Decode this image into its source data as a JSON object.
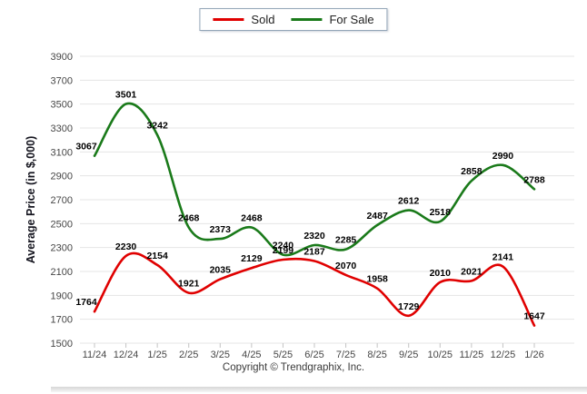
{
  "chart_data": {
    "type": "line",
    "categories": [
      "11/24",
      "12/24",
      "1/25",
      "2/25",
      "3/25",
      "4/25",
      "5/25",
      "6/25",
      "7/25",
      "8/25",
      "9/25",
      "10/25",
      "11/25",
      "12/25",
      "1/26"
    ],
    "series": [
      {
        "name": "Sold",
        "color": "#e00000",
        "values": [
          1764,
          2230,
          2154,
          1921,
          2035,
          2129,
          2199,
          2187,
          2070,
          1958,
          1729,
          2010,
          2021,
          2141,
          1647
        ]
      },
      {
        "name": "For Sale",
        "color": "#1a7a1a",
        "values": [
          3067,
          3501,
          3242,
          2468,
          2373,
          2468,
          2240,
          2320,
          2285,
          2487,
          2612,
          2518,
          2858,
          2990,
          2788
        ]
      }
    ],
    "title": "",
    "xlabel": "",
    "ylabel": "Average Price (in $,000)",
    "ylim": [
      1500,
      3900
    ],
    "ytick_step": 200,
    "grid": true,
    "legend_position": "top-center",
    "data_labels": true,
    "colors": {
      "gridline": "#e5e5e5",
      "tick_label": "#474747",
      "data_label": "#000000",
      "axis_title": "#15151f",
      "x_tick_mark": "#c4c4c4"
    }
  },
  "footer": {
    "copyright": "Copyright © Trendgraphix, Inc."
  }
}
